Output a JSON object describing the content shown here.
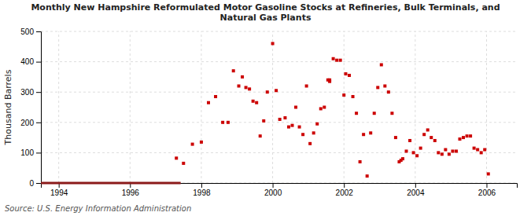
{
  "chart_data": {
    "type": "scatter",
    "title": "Monthly New Hampshire Reformulated Motor Gasoline Stocks at Refineries, Bulk Terminals, and\nNatural Gas Plants",
    "ylabel": "Thousand Barrels",
    "annotations": [
      "Source: U.S. Energy Information Administration"
    ],
    "xlim": [
      1993.5,
      2006.85
    ],
    "xticks": [
      1994,
      1996,
      1998,
      2000,
      2002,
      2004,
      2006
    ],
    "ylim": [
      0,
      500
    ],
    "yticks": [
      0,
      100,
      200,
      300,
      400,
      500
    ],
    "grid": true,
    "series": [
      {
        "type": "scatter",
        "color": "#cc0000",
        "marker": "square",
        "x": [
          1997.3,
          1997.5,
          1997.75,
          1998.0,
          1998.2,
          1998.4,
          1998.6,
          1998.75,
          1998.9,
          1999.05,
          1999.15,
          1999.25,
          1999.35,
          1999.45,
          1999.55,
          1999.65,
          1999.75,
          1999.85,
          2000.0,
          2000.1,
          2000.2,
          2000.35,
          2000.45,
          2000.55,
          2000.65,
          2000.75,
          2000.85,
          2000.95,
          2001.05,
          2001.15,
          2001.25,
          2001.35,
          2001.45,
          2001.55,
          2001.6,
          2001.7,
          2001.8,
          2001.9,
          2002.0,
          2002.05,
          2002.15,
          2002.25,
          2002.35,
          2002.45,
          2002.55,
          2002.65,
          2002.75,
          2002.85,
          2002.95,
          2003.05,
          2003.15,
          2003.25,
          2003.35,
          2003.45,
          2003.55,
          2003.65,
          2003.75,
          2003.85,
          2003.95,
          2004.05,
          2004.15,
          2004.25,
          2004.35,
          2004.45,
          2004.55,
          2004.65,
          2004.75,
          2004.85,
          2004.95,
          2005.05,
          2005.15,
          2005.25,
          2005.35,
          2005.45,
          2005.55,
          2005.65,
          2005.75,
          2005.85,
          2005.95,
          2006.05,
          2001.6,
          2003.6
        ],
        "values": [
          82,
          65,
          128,
          135,
          265,
          285,
          200,
          200,
          370,
          320,
          350,
          315,
          310,
          270,
          265,
          155,
          205,
          300,
          460,
          305,
          210,
          215,
          185,
          190,
          250,
          185,
          160,
          320,
          130,
          165,
          195,
          245,
          250,
          340,
          340,
          410,
          405,
          405,
          290,
          360,
          355,
          285,
          230,
          70,
          160,
          23,
          165,
          230,
          315,
          390,
          320,
          300,
          230,
          150,
          70,
          80,
          105,
          140,
          100,
          90,
          115,
          160,
          175,
          150,
          140,
          100,
          95,
          110,
          95,
          105,
          105,
          145,
          150,
          155,
          155,
          115,
          110,
          100,
          110,
          30,
          335,
          75
        ]
      },
      {
        "type": "line",
        "color": "#8b1a1a",
        "line_style": "solid",
        "x": [
          1993.5,
          1997.42
        ],
        "values": [
          0,
          0
        ]
      }
    ]
  }
}
